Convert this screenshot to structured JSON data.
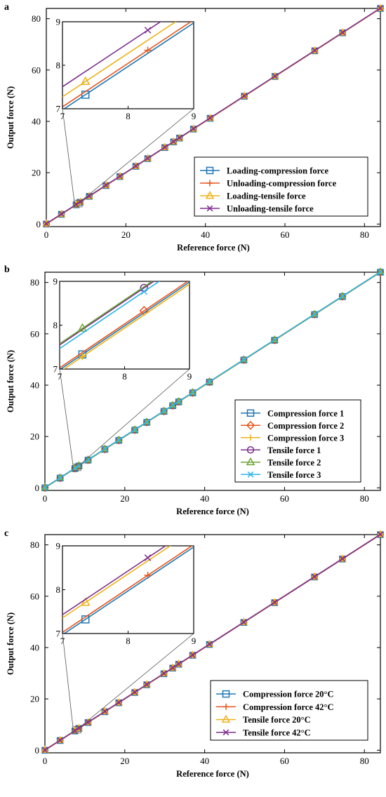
{
  "colors": {
    "blue": "#1f77b4",
    "red": "#e8541c",
    "yellow": "#eeb21b",
    "purple": "#7e2f8e",
    "green": "#6ea534",
    "cyan": "#2bb5e8"
  },
  "chart_data": [
    {
      "type": "line",
      "panel_label": "a",
      "xlabel": "Reference force (N)",
      "ylabel": "Output force (N)",
      "xlim": [
        0,
        84
      ],
      "ylim": [
        -1,
        84
      ],
      "xticks": [
        "0",
        "20",
        "40",
        "60",
        "80"
      ],
      "yticks": [
        "0",
        "20",
        "40",
        "60",
        "80"
      ],
      "x": [
        0,
        3.8,
        7.5,
        8.5,
        10.8,
        15,
        18.5,
        22.5,
        25.5,
        29.8,
        32,
        33.5,
        37,
        41.2,
        49.8,
        57.5,
        67.5,
        74.5,
        84
      ],
      "legend_position": "lower-right",
      "inset": {
        "xlim": [
          7,
          9
        ],
        "ylim": [
          7,
          9
        ],
        "xticks": [
          "7",
          "8",
          "9"
        ],
        "yticks": [
          "7",
          "8",
          "9"
        ]
      },
      "series": [
        {
          "name": "Loading-compression force",
          "marker": "square",
          "color_key": "blue",
          "offset": -0.05
        },
        {
          "name": "Unloading-compression force",
          "marker": "plus",
          "color_key": "red",
          "offset": 0.08
        },
        {
          "name": "Loading-tensile force",
          "marker": "triangle",
          "color_key": "yellow",
          "offset": 0.5
        },
        {
          "name": "Unloading-tensile force",
          "marker": "x",
          "color_key": "purple",
          "offset": 0.92
        }
      ]
    },
    {
      "type": "line",
      "panel_label": "b",
      "xlabel": "Reference force (N)",
      "ylabel": "Output force (N)",
      "xlim": [
        0,
        84
      ],
      "ylim": [
        -1,
        84
      ],
      "xticks": [
        "0",
        "20",
        "40",
        "60",
        "80"
      ],
      "yticks": [
        "0",
        "20",
        "40",
        "60",
        "80"
      ],
      "x": [
        0,
        3.8,
        7.5,
        8.5,
        10.8,
        15,
        18.5,
        22.5,
        25.5,
        29.8,
        32,
        33.5,
        37,
        41.2,
        49.8,
        57.5,
        67.5,
        74.5,
        84
      ],
      "legend_position": "lower-right",
      "inset": {
        "xlim": [
          7,
          9
        ],
        "ylim": [
          7,
          9
        ],
        "xticks": [
          "7",
          "8",
          "9"
        ],
        "yticks": [
          "7",
          "8",
          "9"
        ]
      },
      "series": [
        {
          "name": "Compression force 1",
          "marker": "square",
          "color_key": "blue",
          "offset": -0.03
        },
        {
          "name": "Compression force 2",
          "marker": "diamond",
          "color_key": "red",
          "offset": 0.05
        },
        {
          "name": "Compression force 3",
          "marker": "plus",
          "color_key": "yellow",
          "offset": -0.12
        },
        {
          "name": "Tensile force 1",
          "marker": "circle",
          "color_key": "purple",
          "offset": 1.0
        },
        {
          "name": "Tensile force 2",
          "marker": "triangle",
          "color_key": "green",
          "offset": 1.05
        },
        {
          "name": "Tensile force 3",
          "marker": "x",
          "color_key": "cyan",
          "offset": 0.85
        }
      ]
    },
    {
      "type": "line",
      "panel_label": "c",
      "xlabel": "Reference force (N)",
      "ylabel": "Output force (N)",
      "xlim": [
        0,
        84
      ],
      "ylim": [
        -1,
        84
      ],
      "xticks": [
        "0",
        "20",
        "40",
        "60",
        "80"
      ],
      "yticks": [
        "0",
        "20",
        "40",
        "60",
        "80"
      ],
      "x": [
        0,
        3.8,
        7.5,
        8.5,
        10.8,
        15,
        18.5,
        22.5,
        25.5,
        29.8,
        32,
        33.5,
        37,
        41.2,
        49.8,
        57.5,
        67.5,
        74.5,
        84
      ],
      "legend_position": "lower-right",
      "inset": {
        "xlim": [
          7,
          9
        ],
        "ylim": [
          7,
          9
        ],
        "xticks": [
          "7",
          "8",
          "9"
        ],
        "yticks": [
          "7",
          "8",
          "9"
        ]
      },
      "series": [
        {
          "name": "Compression force 20°C",
          "marker": "square",
          "color_key": "blue",
          "offset": -0.05
        },
        {
          "name": "Compression force 42°C",
          "marker": "plus",
          "color_key": "red",
          "offset": 0.05
        },
        {
          "name": "Tensile force 20°C",
          "marker": "triangle",
          "color_key": "yellow",
          "offset": 0.65
        },
        {
          "name": "Tensile force 42°C",
          "marker": "x",
          "color_key": "purple",
          "offset": 0.78
        }
      ]
    }
  ]
}
